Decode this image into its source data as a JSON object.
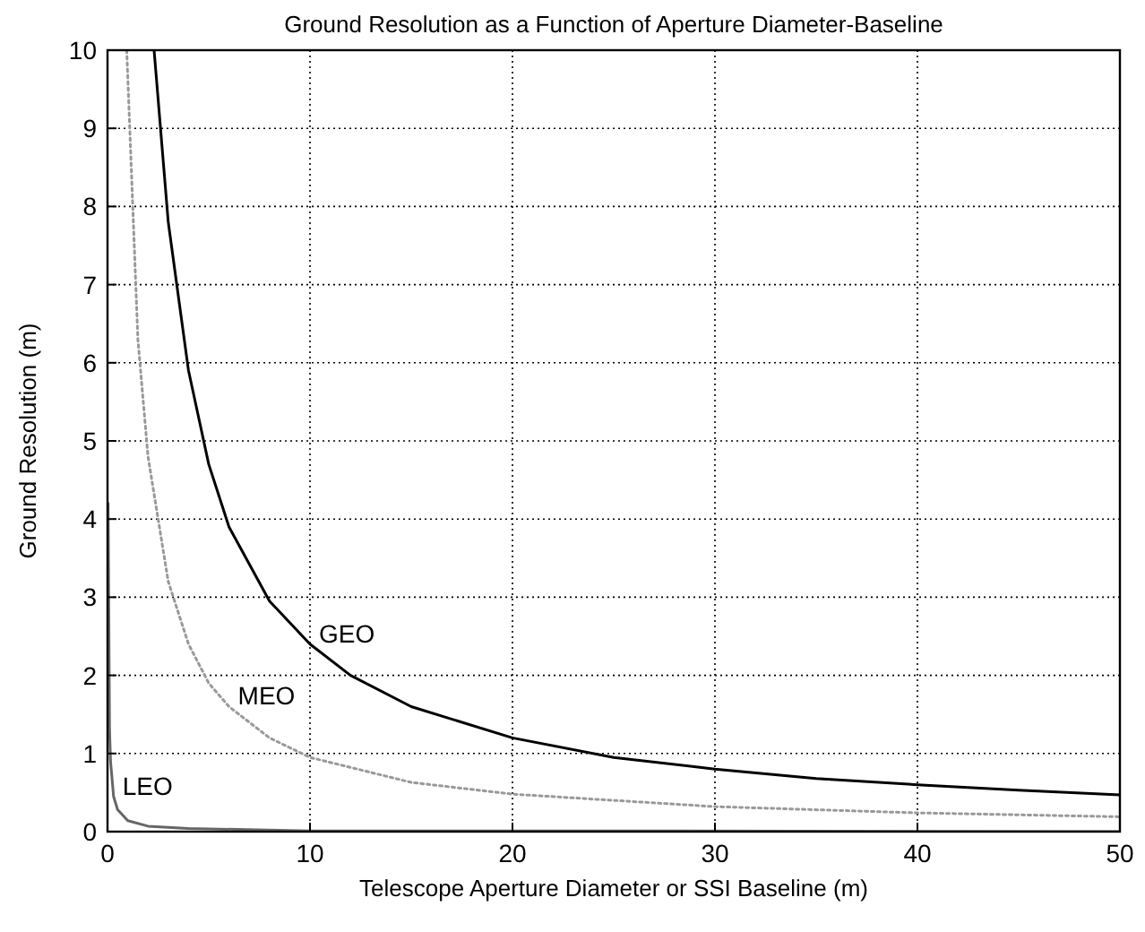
{
  "chart_data": {
    "type": "line",
    "title": "Ground Resolution as a Function of Aperture Diameter-Baseline",
    "xlabel": "Telescope Aperture Diameter or SSI Baseline (m)",
    "ylabel": "Ground Resolution (m)",
    "xlim": [
      0,
      50
    ],
    "ylim": [
      0,
      10
    ],
    "xticks": [
      0,
      10,
      20,
      30,
      40,
      50
    ],
    "yticks": [
      0,
      1,
      2,
      3,
      4,
      5,
      6,
      7,
      8,
      9,
      10
    ],
    "grid": true,
    "marker": "none",
    "series": [
      {
        "color": "#000000",
        "line_style": "solid",
        "x": [
          2.3,
          3,
          4,
          5,
          6,
          8,
          10,
          12,
          15,
          20,
          25,
          30,
          35,
          40,
          45,
          50
        ],
        "values": [
          10,
          7.8,
          5.9,
          4.7,
          3.9,
          2.95,
          2.4,
          2.0,
          1.6,
          1.2,
          0.95,
          0.8,
          0.68,
          0.6,
          0.53,
          0.47
        ]
      },
      {
        "color": "#999999",
        "line_style": "dotted",
        "x": [
          0.95,
          1.5,
          2,
          3,
          4,
          5,
          6,
          8,
          10,
          15,
          20,
          30,
          40,
          50
        ],
        "values": [
          10,
          6.3,
          4.8,
          3.2,
          2.4,
          1.9,
          1.6,
          1.2,
          0.95,
          0.63,
          0.48,
          0.32,
          0.24,
          0.19
        ]
      },
      {
        "color": "#666666",
        "line_style": "solid",
        "x": [
          0.03,
          0.1,
          0.15,
          0.3,
          0.5,
          1,
          2,
          4,
          10,
          20,
          50
        ],
        "values": [
          4.2,
          1.3,
          0.9,
          0.45,
          0.28,
          0.14,
          0.07,
          0.04,
          0.01,
          0.01,
          0.0
        ]
      }
    ],
    "annotations": [
      {
        "text": "GEO",
        "x": 10,
        "y": 2.4
      },
      {
        "text": "MEO",
        "x": 6,
        "y": 1.6
      },
      {
        "text": "LEO",
        "x": 0.3,
        "y": 0.45
      }
    ]
  }
}
